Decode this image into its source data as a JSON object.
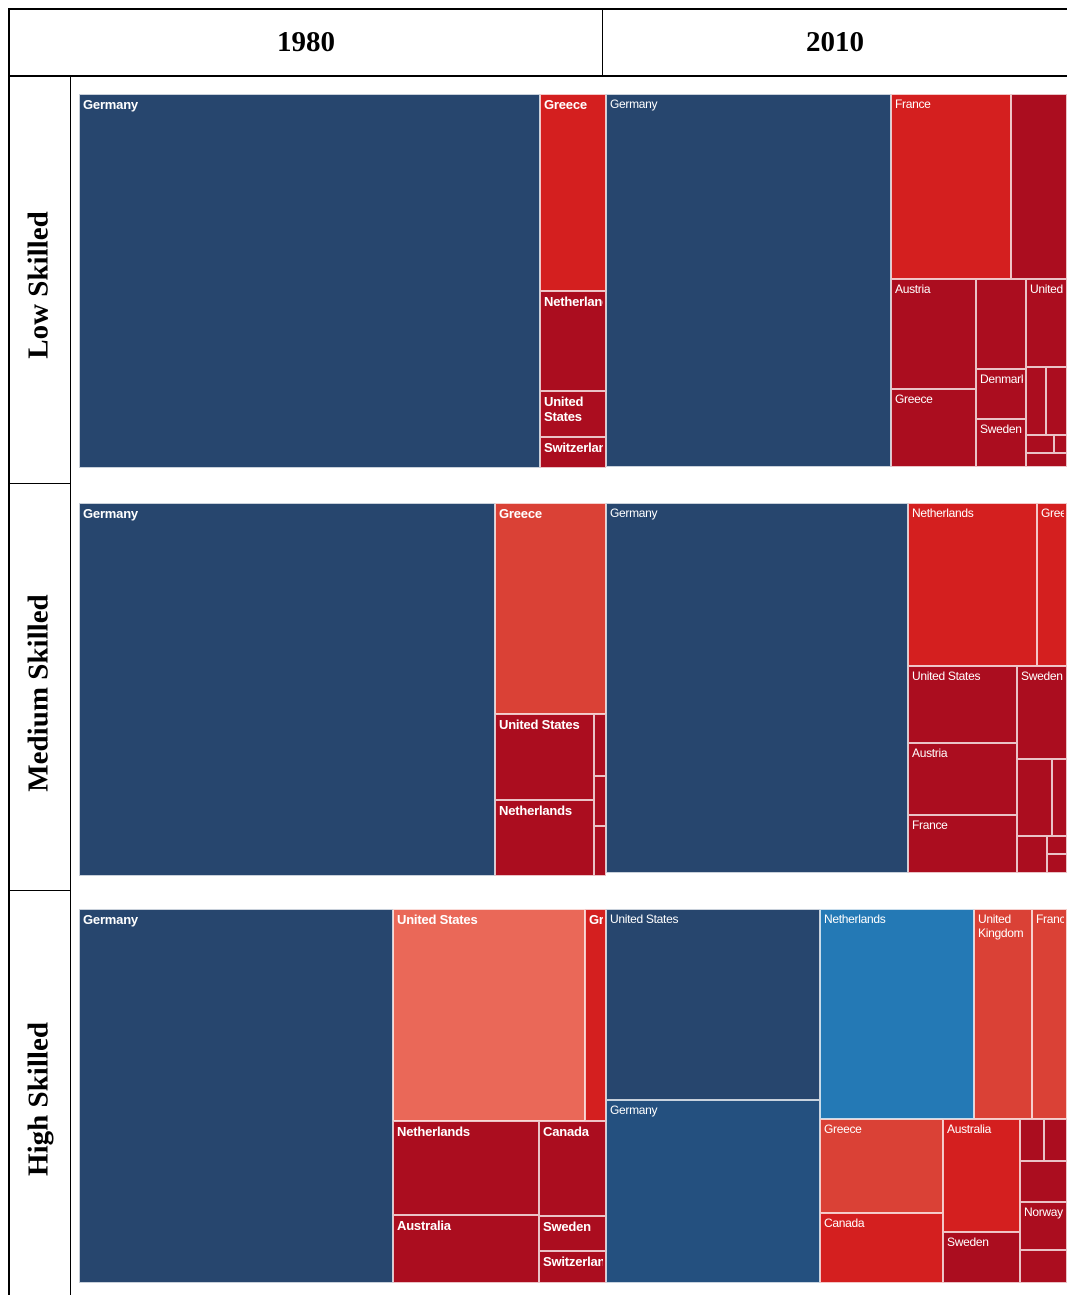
{
  "columns": [
    "1980",
    "2010"
  ],
  "rows": [
    "Low Skilled",
    "Medium Skilled",
    "High Skilled"
  ],
  "colors": {
    "navy": "#27466e",
    "steel": "#24507f",
    "blue": "#2479b5",
    "red": "#d41f1f",
    "darkred": "#ab0d1f",
    "salmon": "#ea6858",
    "orange": "#da4136"
  },
  "chart_data": [
    {
      "type": "treemap",
      "row": "Low Skilled",
      "column": "1980",
      "items": [
        {
          "name": "Germany",
          "area": 85.5
        },
        {
          "name": "Greece",
          "area": 6.3
        },
        {
          "name": "Netherlands",
          "area": 3.5
        },
        {
          "name": "United States",
          "area": 1.8
        },
        {
          "name": "Switzerland",
          "area": 1.2
        }
      ]
    },
    {
      "type": "treemap",
      "row": "Low Skilled",
      "column": "2010",
      "items": [
        {
          "name": "Germany",
          "area": 62.3
        },
        {
          "name": "France",
          "area": 10.7
        },
        {
          "name": "",
          "area": 3.6
        },
        {
          "name": "Austria",
          "area": 4.7
        },
        {
          "name": "Greece",
          "area": 4.3
        },
        {
          "name": "",
          "area": 3.3
        },
        {
          "name": "Denmark",
          "area": 1.5
        },
        {
          "name": "Sweden",
          "area": 1.2
        },
        {
          "name": "United",
          "area": 3.4
        }
      ]
    },
    {
      "type": "treemap",
      "row": "Medium Skilled",
      "column": "1980",
      "items": [
        {
          "name": "Germany",
          "area": 78.5
        },
        {
          "name": "Greece",
          "area": 11.8
        },
        {
          "name": "United States",
          "area": 4.7
        },
        {
          "name": "Netherlands",
          "area": 4.4
        },
        {
          "name": "",
          "area": 0.6
        }
      ]
    },
    {
      "type": "treemap",
      "row": "Medium Skilled",
      "column": "2010",
      "items": [
        {
          "name": "Germany",
          "area": 65.2
        },
        {
          "name": "Netherlands",
          "area": 12.3
        },
        {
          "name": "Greece",
          "area": 2.9
        },
        {
          "name": "United States",
          "area": 5.9
        },
        {
          "name": "Austria",
          "area": 4.7
        },
        {
          "name": "France",
          "area": 4.4
        },
        {
          "name": "Sweden",
          "area": 2.6
        },
        {
          "name": "",
          "area": 2.0
        }
      ]
    },
    {
      "type": "treemap",
      "row": "High Skilled",
      "column": "1980",
      "items": [
        {
          "name": "Germany",
          "area": 59.4
        },
        {
          "name": "United States",
          "area": 17.9
        },
        {
          "name": "Greece",
          "area": 2.0
        },
        {
          "name": "Netherlands",
          "area": 7.8
        },
        {
          "name": "Australia",
          "area": 6.4
        },
        {
          "name": "Canada",
          "area": 3.5
        },
        {
          "name": "Sweden",
          "area": 1.7
        },
        {
          "name": "Switzerland",
          "area": 1.3
        }
      ]
    },
    {
      "type": "treemap",
      "row": "High Skilled",
      "column": "2010",
      "items": [
        {
          "name": "United States",
          "area": 21.1
        },
        {
          "name": "Germany",
          "area": 20.3
        },
        {
          "name": "Netherlands",
          "area": 15.3
        },
        {
          "name": "United Kingdom",
          "area": 6.0
        },
        {
          "name": "France",
          "area": 2.7
        },
        {
          "name": "Greece",
          "area": 6.6
        },
        {
          "name": "Canada",
          "area": 6.6
        },
        {
          "name": "Australia",
          "area": 5.5
        },
        {
          "name": "Sweden",
          "area": 2.6
        },
        {
          "name": "Norway",
          "area": 1.3
        },
        {
          "name": "",
          "area": 4.7
        }
      ]
    }
  ]
}
